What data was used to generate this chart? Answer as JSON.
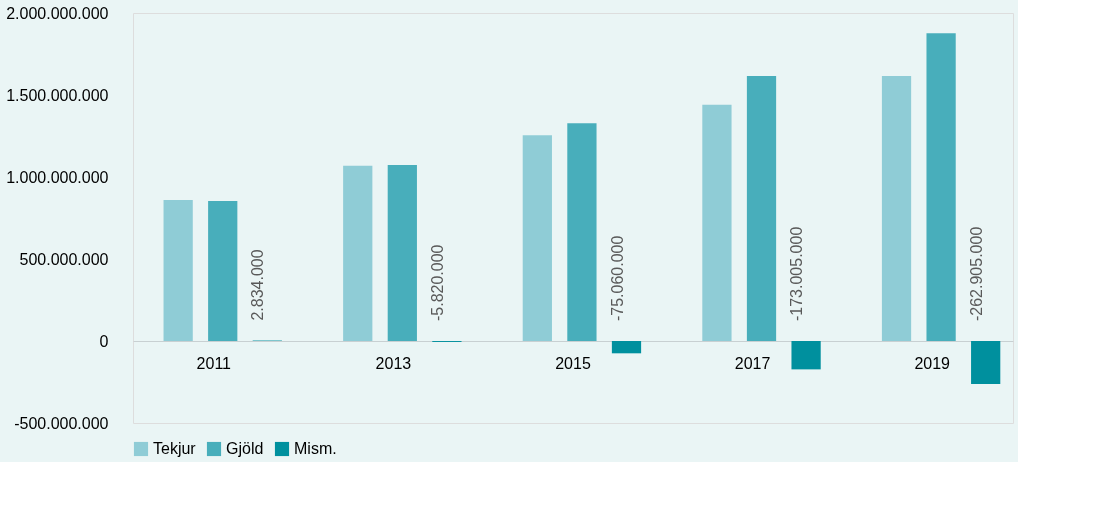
{
  "chart_data": {
    "type": "bar",
    "categories": [
      "2011",
      "2013",
      "2015",
      "2017",
      "2019"
    ],
    "series": [
      {
        "name": "Tekjur",
        "color": "#8fccd6",
        "values": [
          859000000,
          1068000000,
          1254000000,
          1441000000,
          1616000000
        ]
      },
      {
        "name": "Gjöld",
        "color": "#48aebb",
        "values": [
          853000000,
          1073000000,
          1328000000,
          1616000000,
          1876000000
        ]
      },
      {
        "name": "Mism.",
        "color": "#00909e",
        "values": [
          2834000,
          -5820000,
          -75060000,
          -173005000,
          -262905000
        ],
        "value_labels": [
          "2.834.000",
          "-5.820.000",
          "-75.060.000",
          "-173.005.000",
          "-262.905.000"
        ]
      }
    ],
    "ylim": [
      -500000000,
      2000000000
    ],
    "yticks": [
      {
        "value": -500000000,
        "label": "-500.000.000"
      },
      {
        "value": 0,
        "label": "0"
      },
      {
        "value": 500000000,
        "label": "500.000.000"
      },
      {
        "value": 1000000000,
        "label": "1.000.000.000"
      },
      {
        "value": 1500000000,
        "label": "1.500.000.000"
      },
      {
        "value": 2000000000,
        "label": "2.000.000.000"
      }
    ],
    "grid": false,
    "legend": "bottom"
  }
}
